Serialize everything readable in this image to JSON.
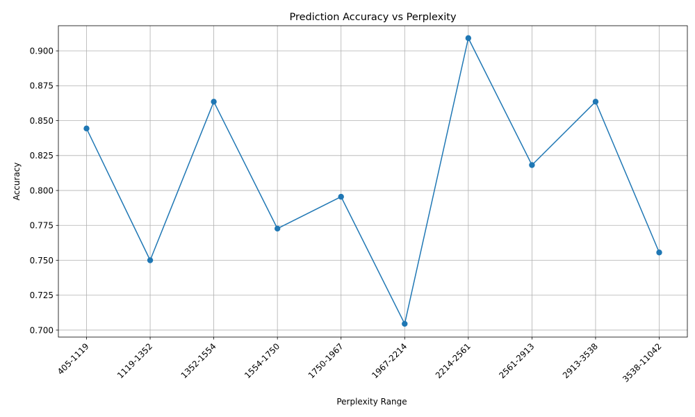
{
  "chart_data": {
    "type": "line",
    "title": "Prediction Accuracy vs Perplexity",
    "xlabel": "Perplexity Range",
    "ylabel": "Accuracy",
    "categories": [
      "405-1119",
      "1119-1352",
      "1352-1554",
      "1554-1750",
      "1750-1967",
      "1967-2214",
      "2214-2561",
      "2561-2913",
      "2913-3538",
      "3538-11042"
    ],
    "series": [
      {
        "values": [
          0.8444,
          0.75,
          0.8636,
          0.7727,
          0.7955,
          0.7045,
          0.9091,
          0.8182,
          0.8636,
          0.7556
        ],
        "color": "#1f77b4",
        "marker": "circle"
      }
    ],
    "ylim": [
      0.695,
      0.918
    ],
    "yticks": [
      0.7,
      0.725,
      0.75,
      0.775,
      0.8,
      0.825,
      0.85,
      0.875,
      0.9
    ],
    "ytick_labels": [
      "0.700",
      "0.725",
      "0.750",
      "0.775",
      "0.800",
      "0.825",
      "0.850",
      "0.875",
      "0.900"
    ],
    "xtick_rotation": 45,
    "grid": true,
    "grid_color": "#b0b0b0"
  }
}
